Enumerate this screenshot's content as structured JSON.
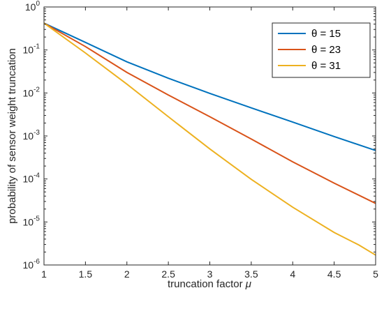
{
  "chart_data": {
    "type": "line",
    "title": "",
    "xlabel": "truncation factor",
    "xlabel_symbol": "μ",
    "ylabel": "probability of sensor weight truncation",
    "xlim": [
      1,
      5
    ],
    "ylim": [
      1e-06,
      1
    ],
    "yscale": "log",
    "grid": false,
    "legend_position": "top-right",
    "x_ticks": [
      "1",
      "1.5",
      "2",
      "2.5",
      "3",
      "3.5",
      "4",
      "4.5",
      "5"
    ],
    "y_ticks": [
      {
        "value": 1e-06,
        "base": "10",
        "exp": "-6"
      },
      {
        "value": 1e-05,
        "base": "10",
        "exp": "-5"
      },
      {
        "value": 0.0001,
        "base": "10",
        "exp": "-4"
      },
      {
        "value": 0.001,
        "base": "10",
        "exp": "-3"
      },
      {
        "value": 0.01,
        "base": "10",
        "exp": "-2"
      },
      {
        "value": 0.1,
        "base": "10",
        "exp": "-1"
      },
      {
        "value": 1,
        "base": "10",
        "exp": "0"
      }
    ],
    "series": [
      {
        "name": "θ = 15",
        "color": "#0072BD",
        "x": [
          1,
          1.5,
          2,
          2.5,
          3,
          3.5,
          4,
          4.5,
          5
        ],
        "y": [
          0.42,
          0.15,
          0.053,
          0.022,
          0.0098,
          0.0045,
          0.0021,
          0.00097,
          0.00046
        ]
      },
      {
        "name": "θ = 23",
        "color": "#D95319",
        "x": [
          1,
          1.5,
          2,
          2.5,
          3,
          3.5,
          4,
          4.5,
          5
        ],
        "y": [
          0.42,
          0.12,
          0.03,
          0.009,
          0.0028,
          0.00085,
          0.00025,
          8e-05,
          2.7e-05
        ]
      },
      {
        "name": "θ = 31",
        "color": "#EDB120",
        "x": [
          1,
          1.5,
          2,
          2.5,
          3,
          3.5,
          4,
          4.5,
          4.8,
          5
        ],
        "y": [
          0.42,
          0.085,
          0.016,
          0.0028,
          0.0005,
          9.8e-05,
          2.2e-05,
          5.7e-06,
          2.9e-06,
          1.7e-06
        ]
      }
    ]
  }
}
